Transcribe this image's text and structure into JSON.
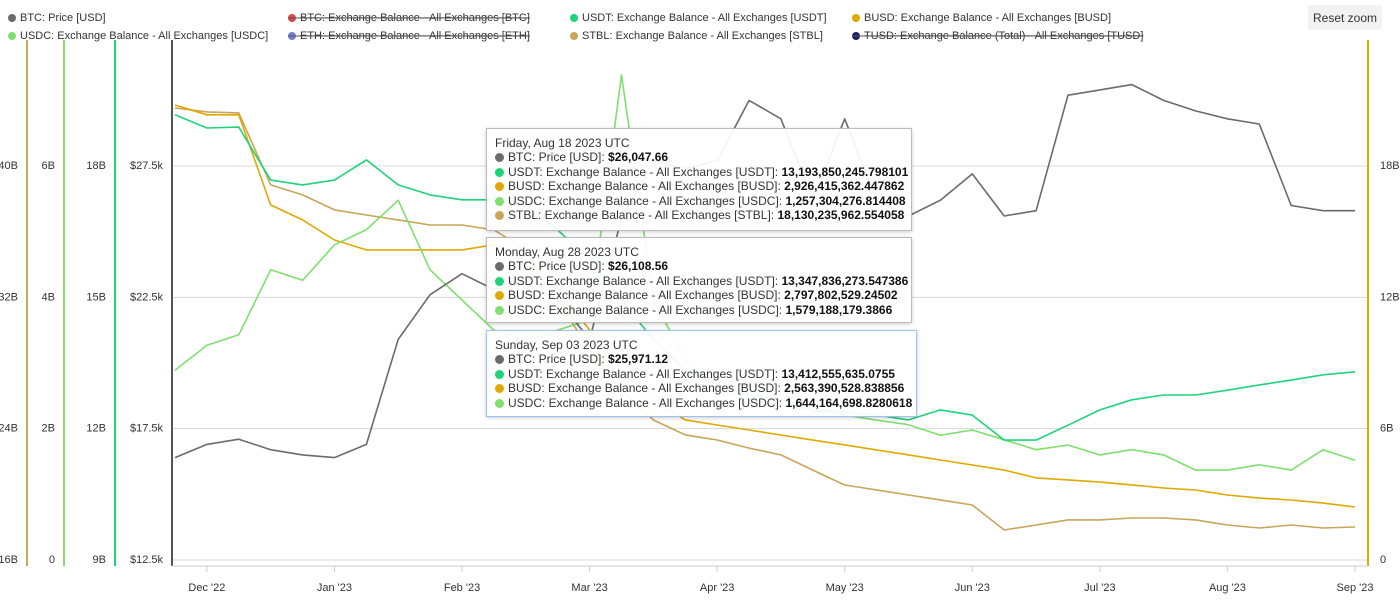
{
  "chart_data": {
    "type": "line",
    "reset_zoom": "Reset zoom",
    "categories": [
      null,
      "Dec '22",
      null,
      null,
      null,
      "Jan '23",
      null,
      null,
      null,
      "Feb '23",
      null,
      null,
      null,
      "Mar '23",
      null,
      null,
      null,
      "Apr '23",
      null,
      null,
      null,
      "May '23",
      null,
      null,
      null,
      "Jun '23",
      null,
      null,
      null,
      "Jul '23",
      null,
      null,
      null,
      "Aug '23",
      null,
      null,
      null,
      "Sep '23"
    ],
    "grid": true,
    "yaxes": [
      {
        "side": "left",
        "color": "#c9a55a",
        "lim": [
          16,
          47.68
        ],
        "ticks": [
          {
            "value": 16,
            "label": "16B"
          },
          {
            "value": 24,
            "label": "24B"
          },
          {
            "value": 32,
            "label": "32B"
          },
          {
            "value": 40,
            "label": "40B"
          }
        ]
      },
      {
        "side": "left",
        "color": "#7fe06e",
        "lim": [
          0,
          7.92
        ],
        "ticks": [
          0,
          {
            "value": 2,
            "label": "2B"
          },
          {
            "value": 4,
            "label": "4B"
          },
          {
            "value": 6,
            "label": "6B"
          }
        ]
      },
      {
        "side": "left",
        "color": "#1fd37a",
        "lim": [
          9,
          20.88
        ],
        "ticks": [
          {
            "value": 9,
            "label": "9B"
          },
          {
            "value": 12,
            "label": "12B"
          },
          {
            "value": 15,
            "label": "15B"
          },
          {
            "value": 18,
            "label": "18B"
          }
        ]
      },
      {
        "side": "left",
        "color": "#555555",
        "lim": [
          12500,
          32300
        ],
        "ticks": [
          {
            "value": 12500,
            "label": "$12.5k"
          },
          {
            "value": 17500,
            "label": "$17.5k"
          },
          {
            "value": 22500,
            "label": "$22.5k"
          },
          {
            "value": 27500,
            "label": "$27.5k"
          }
        ]
      },
      {
        "side": "right",
        "color": "#e0a800",
        "lim": [
          0,
          23.76
        ],
        "ticks": [
          0,
          {
            "value": 6,
            "label": "6B"
          },
          {
            "value": 12,
            "label": "12B"
          },
          {
            "value": 18,
            "label": "18B"
          }
        ]
      }
    ],
    "series": [
      {
        "name": "BTC: Price [USD]",
        "color": "#6b6b6b",
        "visible": true,
        "axis": 3,
        "values": [
          16400,
          16900,
          17100,
          16700,
          16500,
          16400,
          16900,
          20900,
          22600,
          23400,
          22800,
          23000,
          22400,
          20900,
          25500,
          27700,
          27400,
          27700,
          30000,
          29300,
          26200,
          29300,
          26200,
          25600,
          26200,
          27200,
          25600,
          25800,
          30200,
          30400,
          30600,
          30000,
          29600,
          29300,
          29100,
          26000,
          25800,
          25800
        ]
      },
      {
        "name": "BTC: Exchange Balance - All Exchanges [BTC]",
        "color": "#e04848",
        "visible": false
      },
      {
        "name": "USDT: Exchange Balance - All Exchanges [USDT]",
        "color": "#1fd37a",
        "visible": true,
        "axis": 2,
        "values": [
          19.17,
          18.87,
          18.89,
          17.68,
          17.57,
          17.68,
          18.14,
          17.57,
          17.34,
          17.23,
          17.23,
          17.11,
          16.54,
          15.86,
          14.94,
          14.03,
          13.34,
          13.0,
          12.77,
          12.66,
          12.43,
          12.38,
          12.31,
          12.2,
          12.43,
          12.31,
          11.74,
          11.74,
          12.08,
          12.43,
          12.66,
          12.77,
          12.77,
          12.88,
          13.0,
          13.11,
          13.23,
          13.3
        ]
      },
      {
        "name": "BUSD: Exchange Balance - All Exchanges [BUSD]",
        "color": "#e0a800",
        "visible": true,
        "axis": 4,
        "values": [
          20.79,
          20.34,
          20.34,
          16.22,
          15.54,
          14.62,
          14.17,
          14.17,
          14.17,
          14.17,
          14.4,
          13.71,
          12.34,
          10.51,
          8.68,
          7.31,
          6.4,
          6.17,
          5.94,
          5.71,
          5.48,
          5.26,
          5.03,
          4.8,
          4.57,
          4.34,
          4.11,
          3.75,
          3.66,
          3.56,
          3.43,
          3.29,
          3.2,
          2.97,
          2.83,
          2.74,
          2.6,
          2.42
        ]
      },
      {
        "name": "USDC: Exchange Balance - All Exchanges [USDC]",
        "color": "#7fe06e",
        "visible": true,
        "axis": 1,
        "values": [
          2.89,
          3.27,
          3.43,
          4.42,
          4.26,
          4.8,
          5.03,
          5.48,
          4.42,
          3.96,
          3.5,
          3.35,
          3.5,
          3.66,
          7.39,
          3.96,
          3.05,
          2.59,
          2.44,
          2.36,
          2.28,
          2.21,
          2.13,
          2.06,
          1.9,
          1.98,
          1.83,
          1.68,
          1.75,
          1.6,
          1.68,
          1.6,
          1.37,
          1.37,
          1.45,
          1.37,
          1.68,
          1.52
        ]
      },
      {
        "name": "ETH: Exchange Balance - All Exchanges [ETH]",
        "color": "#6a7fd0",
        "visible": false
      },
      {
        "name": "STBL: Exchange Balance - All Exchanges [STBL]",
        "color": "#c9a55a",
        "visible": true,
        "axis": 0,
        "values": [
          43.54,
          43.3,
          43.24,
          38.85,
          38.24,
          37.33,
          37.02,
          36.72,
          36.41,
          36.41,
          36.11,
          34.89,
          31.84,
          28.8,
          26.36,
          24.53,
          23.62,
          23.31,
          22.82,
          22.4,
          21.48,
          20.57,
          20.27,
          19.96,
          19.66,
          19.35,
          17.83,
          18.13,
          18.44,
          18.44,
          18.56,
          18.56,
          18.44,
          18.13,
          17.95,
          18.13,
          17.95,
          18.01
        ]
      },
      {
        "name": "TUSD: Exchange Balance (Total) - All Exchanges [TUSD]",
        "color": "#1c2260",
        "visible": false
      }
    ],
    "tooltips": [
      {
        "date": "Friday, Aug 18 2023 UTC",
        "rows": [
          {
            "color": "#6b6b6b",
            "label": "BTC: Price [USD]:",
            "value": "$26,047.66"
          },
          {
            "color": "#1fd37a",
            "label": "USDT: Exchange Balance - All Exchanges [USDT]:",
            "value": "13,193,850,245.798101"
          },
          {
            "color": "#e0a800",
            "label": "BUSD: Exchange Balance - All Exchanges [BUSD]:",
            "value": "2,926,415,362.447862"
          },
          {
            "color": "#7fe06e",
            "label": "USDC: Exchange Balance - All Exchanges [USDC]:",
            "value": "1,257,304,276.814408"
          },
          {
            "color": "#c9a55a",
            "label": "STBL: Exchange Balance - All Exchanges [STBL]:",
            "value": "18,130,235,962.554058"
          }
        ]
      },
      {
        "date": "Monday, Aug 28 2023 UTC",
        "rows": [
          {
            "color": "#6b6b6b",
            "label": "BTC: Price [USD]:",
            "value": "$26,108.56"
          },
          {
            "color": "#1fd37a",
            "label": "USDT: Exchange Balance - All Exchanges [USDT]:",
            "value": "13,347,836,273.547386"
          },
          {
            "color": "#e0a800",
            "label": "BUSD: Exchange Balance - All Exchanges [BUSD]:",
            "value": "2,797,802,529.24502"
          },
          {
            "color": "#7fe06e",
            "label": "USDC: Exchange Balance - All Exchanges [USDC]:",
            "value": "1,579,188,179.3866"
          }
        ]
      },
      {
        "date": "Sunday, Sep 03 2023 UTC",
        "rows": [
          {
            "color": "#6b6b6b",
            "label": "BTC: Price [USD]:",
            "value": "$25,971.12"
          },
          {
            "color": "#1fd37a",
            "label": "USDT: Exchange Balance - All Exchanges [USDT]:",
            "value": "13,412,555,635.0755"
          },
          {
            "color": "#e0a800",
            "label": "BUSD: Exchange Balance - All Exchanges [BUSD]:",
            "value": "2,563,390,528.838856"
          },
          {
            "color": "#7fe06e",
            "label": "USDC: Exchange Balance - All Exchanges [USDC]:",
            "value": "1,644,164,698.8280618"
          }
        ]
      }
    ]
  }
}
